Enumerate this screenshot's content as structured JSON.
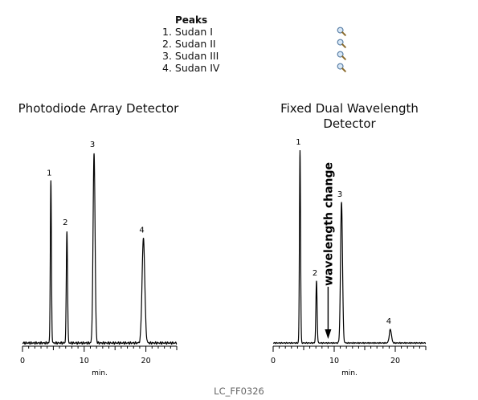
{
  "peaks": {
    "title": "Peaks",
    "items": [
      {
        "label": "1. Sudan I",
        "icon": "magnifier-icon"
      },
      {
        "label": "2. Sudan II",
        "icon": "magnifier-icon"
      },
      {
        "label": "3. Sudan III",
        "icon": "magnifier-icon"
      },
      {
        "label": "4. Sudan IV",
        "icon": "magnifier-icon"
      }
    ]
  },
  "chart_data": [
    {
      "type": "line",
      "title": "Photodiode Array Detector",
      "xlabel": "min.",
      "ylabel": "",
      "xlim": [
        0,
        25
      ],
      "xticks": [
        "0",
        "10",
        "20"
      ],
      "peaks": [
        {
          "label": "1",
          "x": 4.6,
          "height": 0.85
        },
        {
          "label": "2",
          "x": 7.2,
          "height": 0.59
        },
        {
          "label": "3",
          "x": 11.6,
          "height": 1.0
        },
        {
          "label": "4",
          "x": 19.6,
          "height": 0.55
        }
      ]
    },
    {
      "type": "line",
      "title": "Fixed Dual Wavelength Detector",
      "xlabel": "min.",
      "ylabel": "",
      "xlim": [
        0,
        25
      ],
      "xticks": [
        "0",
        "10",
        "20"
      ],
      "annotation": {
        "text": "wavelength change",
        "x": 9.0
      },
      "peaks": [
        {
          "label": "1",
          "x": 4.4,
          "height": 1.0
        },
        {
          "label": "2",
          "x": 7.1,
          "height": 0.32
        },
        {
          "label": "3",
          "x": 11.2,
          "height": 0.73
        },
        {
          "label": "4",
          "x": 19.2,
          "height": 0.07
        }
      ]
    }
  ],
  "footer": "LC_FF0326"
}
